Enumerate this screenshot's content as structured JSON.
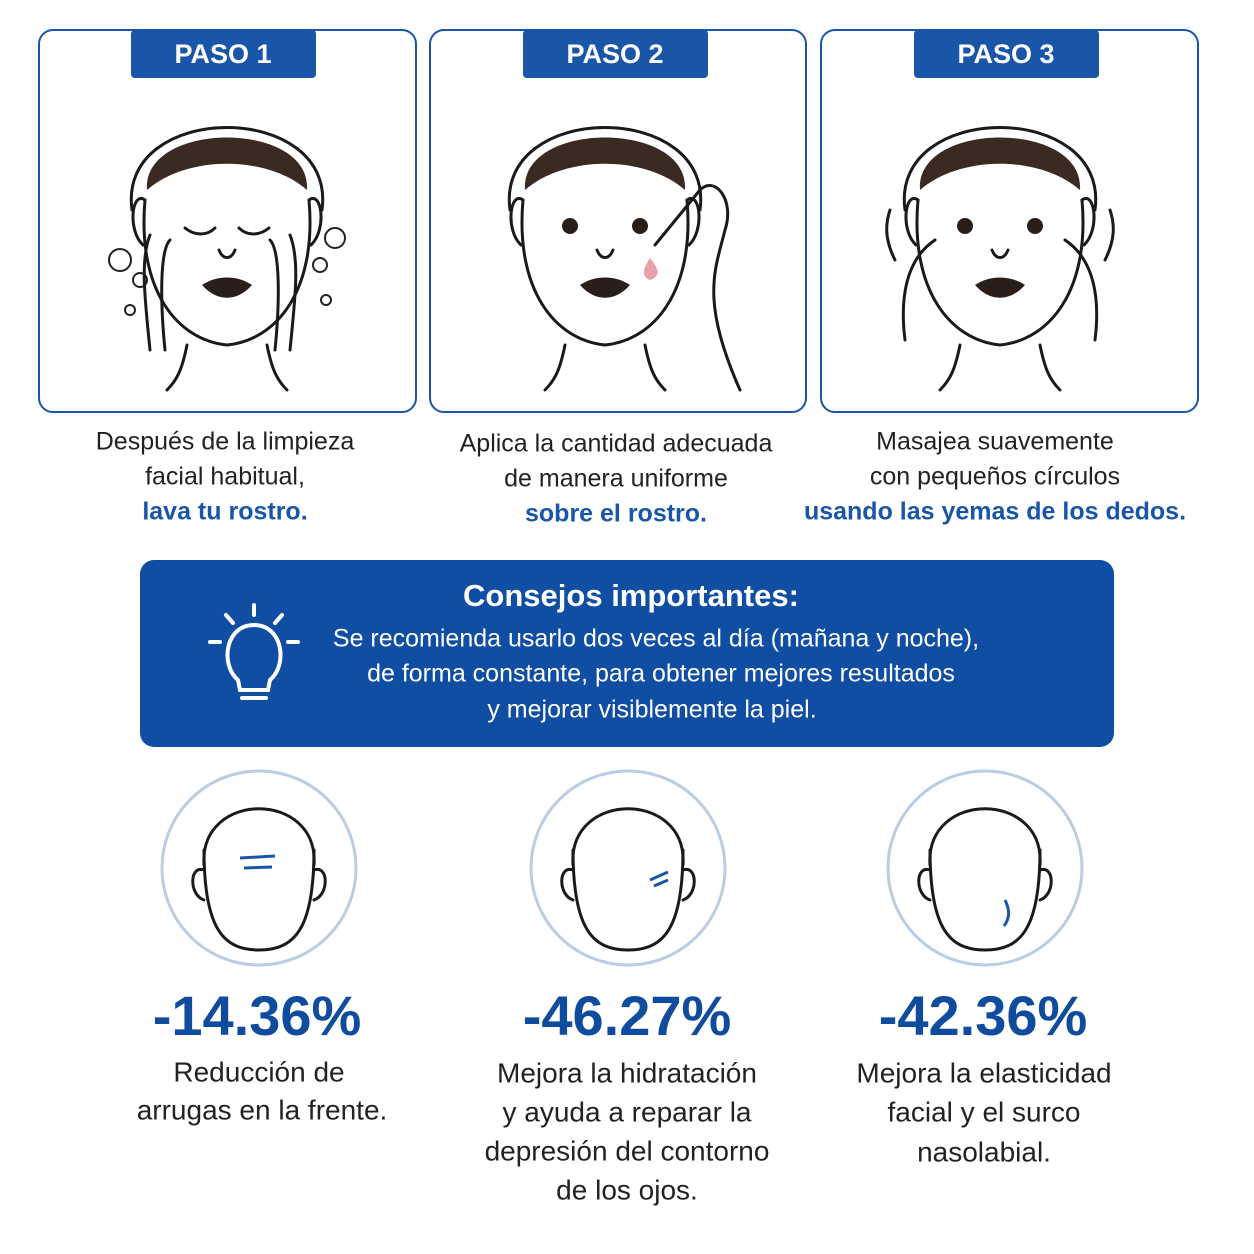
{
  "steps": [
    {
      "label": "PASO 1",
      "lines": [
        "Después de la limpieza",
        "facial habitual,"
      ],
      "highlight": "lava tu rostro."
    },
    {
      "label": "PASO 2",
      "lines": [
        "Aplica la cantidad adecuada",
        "de manera uniforme"
      ],
      "highlight": "sobre el rostro."
    },
    {
      "label": "PASO 3",
      "lines": [
        "Masajea suavemente",
        "con pequeños círculos"
      ],
      "highlight": "usando las yemas de los dedos."
    }
  ],
  "tips": {
    "title": "Consejos importantes:",
    "lines": [
      "Se recomienda usarlo dos veces al día (mañana y noche),",
      "de forma constante, para obtener mejores resultados",
      "y mejorar visiblemente la piel."
    ]
  },
  "results": [
    {
      "value": "-14.36%",
      "lines": [
        "Reducción de",
        "arrugas en la frente."
      ]
    },
    {
      "value": "-46.27%",
      "lines": [
        "Mejora la hidratación",
        "y ayuda a reparar la",
        "depresión del contorno",
        "de los ojos."
      ]
    },
    {
      "value": "-42.36%",
      "lines": [
        "Mejora la elasticidad",
        "facial y el surco",
        "nasolabial."
      ]
    }
  ]
}
